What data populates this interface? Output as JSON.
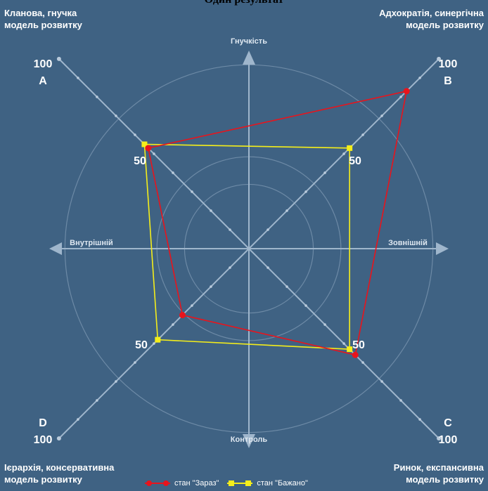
{
  "title": "Один результат",
  "corners": {
    "top_left": [
      "Кланова, гнучка",
      "модель розвитку"
    ],
    "top_right": [
      "Адхократія, синергічна",
      "модель розвитку"
    ],
    "bottom_left": [
      "Ієрархія, консервативна",
      "модель розвитку"
    ],
    "bottom_right": [
      "Ринок, експансивна",
      "модель розвитку"
    ]
  },
  "colors": {
    "background": "#3f6283",
    "axis": "#9fb6cc",
    "current": "#e8141c",
    "desired": "#f5ee1a"
  },
  "chart_data": {
    "type": "radar",
    "axes": [
      {
        "id": "A",
        "label": "A",
        "max_label": "100",
        "mid_label": "50"
      },
      {
        "id": "B",
        "label": "B",
        "max_label": "100",
        "mid_label": "50"
      },
      {
        "id": "C",
        "label": "C",
        "max_label": "100",
        "mid_label": "50"
      },
      {
        "id": "D",
        "label": "D",
        "max_label": "100",
        "mid_label": "50"
      }
    ],
    "range": [
      0,
      100
    ],
    "directions": {
      "top": "Гнучкість",
      "bottom": "Контроль",
      "left": "Внутрішній",
      "right": "Зовнішній"
    },
    "series": [
      {
        "name": "стан \"Зараз\"",
        "values": {
          "A": 53,
          "B": 83,
          "C": 56,
          "D": 35
        },
        "color": "#e8141c"
      },
      {
        "name": "стан \"Бажано\"",
        "values": {
          "A": 55,
          "B": 53,
          "C": 53,
          "D": 48
        },
        "color": "#f5ee1a"
      }
    ],
    "grid": true,
    "legend_position": "bottom"
  }
}
